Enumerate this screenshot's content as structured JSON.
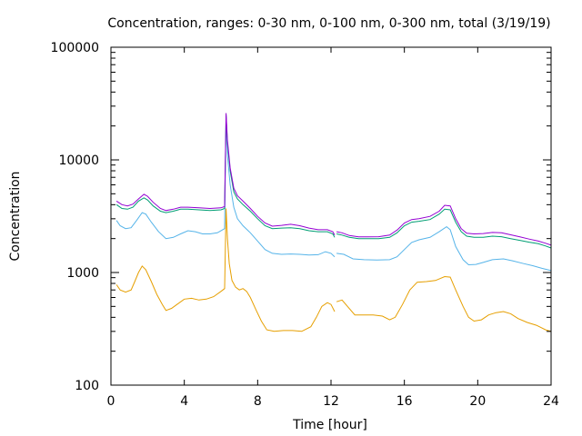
{
  "chart_data": {
    "type": "line",
    "title": "Concentration, ranges: 0-30 nm, 0-100 nm, 0-300 nm, total (3/19/19)",
    "xlabel": "Time [hour]",
    "ylabel": "Concentration",
    "xlim": [
      0,
      24
    ],
    "ylim": [
      100,
      100000
    ],
    "yscale": "log",
    "grid": false,
    "legend": "none",
    "xticks": [
      0,
      4,
      8,
      12,
      16,
      20,
      24
    ],
    "xtick_labels": [
      "0",
      "4",
      "8",
      "12",
      "16",
      "20",
      "24"
    ],
    "yticks": [
      100,
      1000,
      10000,
      100000
    ],
    "ytick_labels": [
      "100",
      "1000",
      "10000",
      "100000"
    ],
    "series": [
      {
        "color": "#e69f00",
        "segments": [
          [
            [
              0.3,
              780
            ],
            [
              0.5,
              700
            ],
            [
              0.8,
              670
            ],
            [
              1.1,
              700
            ],
            [
              1.3,
              830
            ],
            [
              1.5,
              1000
            ],
            [
              1.7,
              1140
            ],
            [
              1.9,
              1060
            ],
            [
              2.2,
              830
            ],
            [
              2.5,
              640
            ],
            [
              2.8,
              520
            ],
            [
              3.0,
              460
            ],
            [
              3.3,
              480
            ],
            [
              3.6,
              520
            ],
            [
              4.0,
              580
            ],
            [
              4.4,
              590
            ],
            [
              4.8,
              570
            ],
            [
              5.2,
              580
            ],
            [
              5.6,
              610
            ],
            [
              6.0,
              680
            ],
            [
              6.2,
              720
            ],
            [
              6.28,
              3700
            ],
            [
              6.35,
              2000
            ],
            [
              6.45,
              1200
            ],
            [
              6.6,
              850
            ],
            [
              6.8,
              740
            ],
            [
              7.0,
              700
            ],
            [
              7.2,
              720
            ],
            [
              7.4,
              680
            ],
            [
              7.6,
              600
            ],
            [
              7.9,
              470
            ],
            [
              8.2,
              370
            ],
            [
              8.5,
              310
            ],
            [
              8.9,
              300
            ],
            [
              9.4,
              305
            ],
            [
              9.9,
              305
            ],
            [
              10.4,
              300
            ],
            [
              10.9,
              330
            ],
            [
              11.2,
              400
            ],
            [
              11.5,
              500
            ],
            [
              11.8,
              540
            ],
            [
              12.0,
              520
            ],
            [
              12.2,
              450
            ]
          ],
          [
            [
              12.3,
              550
            ],
            [
              12.6,
              570
            ],
            [
              12.9,
              500
            ],
            [
              13.3,
              420
            ],
            [
              13.8,
              420
            ],
            [
              14.3,
              420
            ],
            [
              14.8,
              410
            ],
            [
              15.2,
              380
            ],
            [
              15.5,
              400
            ],
            [
              15.9,
              520
            ],
            [
              16.3,
              700
            ],
            [
              16.7,
              820
            ],
            [
              17.2,
              830
            ],
            [
              17.7,
              850
            ],
            [
              18.2,
              920
            ],
            [
              18.5,
              910
            ],
            [
              18.8,
              700
            ],
            [
              19.2,
              500
            ],
            [
              19.5,
              400
            ],
            [
              19.8,
              370
            ],
            [
              20.2,
              380
            ],
            [
              20.6,
              420
            ],
            [
              21.0,
              440
            ],
            [
              21.4,
              450
            ],
            [
              21.8,
              430
            ],
            [
              22.2,
              390
            ],
            [
              22.7,
              360
            ],
            [
              23.2,
              340
            ],
            [
              23.7,
              310
            ],
            [
              24.0,
              300
            ]
          ]
        ]
      },
      {
        "color": "#56b4e9",
        "segments": [
          [
            [
              0.3,
              2900
            ],
            [
              0.5,
              2600
            ],
            [
              0.8,
              2450
            ],
            [
              1.1,
              2500
            ],
            [
              1.4,
              2900
            ],
            [
              1.7,
              3400
            ],
            [
              1.9,
              3300
            ],
            [
              2.2,
              2800
            ],
            [
              2.6,
              2300
            ],
            [
              3.0,
              2000
            ],
            [
              3.4,
              2050
            ],
            [
              3.8,
              2200
            ],
            [
              4.2,
              2350
            ],
            [
              4.6,
              2300
            ],
            [
              5.0,
              2200
            ],
            [
              5.4,
              2200
            ],
            [
              5.8,
              2250
            ],
            [
              6.2,
              2450
            ],
            [
              6.28,
              24000
            ],
            [
              6.35,
              11000
            ],
            [
              6.5,
              6000
            ],
            [
              6.7,
              3800
            ],
            [
              6.9,
              3000
            ],
            [
              7.2,
              2600
            ],
            [
              7.6,
              2250
            ],
            [
              8.0,
              1900
            ],
            [
              8.4,
              1600
            ],
            [
              8.8,
              1480
            ],
            [
              9.3,
              1450
            ],
            [
              9.8,
              1460
            ],
            [
              10.3,
              1450
            ],
            [
              10.8,
              1430
            ],
            [
              11.3,
              1440
            ],
            [
              11.7,
              1530
            ],
            [
              12.0,
              1480
            ],
            [
              12.2,
              1380
            ]
          ],
          [
            [
              12.3,
              1480
            ],
            [
              12.7,
              1450
            ],
            [
              13.2,
              1320
            ],
            [
              13.8,
              1300
            ],
            [
              14.5,
              1290
            ],
            [
              15.2,
              1300
            ],
            [
              15.6,
              1380
            ],
            [
              16.0,
              1600
            ],
            [
              16.4,
              1850
            ],
            [
              16.8,
              1950
            ],
            [
              17.4,
              2050
            ],
            [
              17.9,
              2300
            ],
            [
              18.3,
              2550
            ],
            [
              18.5,
              2400
            ],
            [
              18.8,
              1700
            ],
            [
              19.2,
              1300
            ],
            [
              19.5,
              1170
            ],
            [
              19.9,
              1180
            ],
            [
              20.3,
              1230
            ],
            [
              20.8,
              1300
            ],
            [
              21.4,
              1320
            ],
            [
              21.9,
              1270
            ],
            [
              22.5,
              1200
            ],
            [
              23.0,
              1150
            ],
            [
              23.5,
              1090
            ],
            [
              24.0,
              1040
            ]
          ]
        ]
      },
      {
        "color": "#009e73",
        "segments": [
          [
            [
              0.3,
              4000
            ],
            [
              0.6,
              3700
            ],
            [
              0.9,
              3650
            ],
            [
              1.2,
              3800
            ],
            [
              1.5,
              4300
            ],
            [
              1.8,
              4600
            ],
            [
              2.0,
              4400
            ],
            [
              2.3,
              3900
            ],
            [
              2.7,
              3500
            ],
            [
              3.0,
              3400
            ],
            [
              3.4,
              3500
            ],
            [
              3.8,
              3650
            ],
            [
              4.2,
              3650
            ],
            [
              4.8,
              3600
            ],
            [
              5.4,
              3550
            ],
            [
              6.0,
              3600
            ],
            [
              6.2,
              3700
            ],
            [
              6.28,
              25000
            ],
            [
              6.35,
              14000
            ],
            [
              6.5,
              8000
            ],
            [
              6.7,
              5200
            ],
            [
              6.9,
              4500
            ],
            [
              7.2,
              4000
            ],
            [
              7.6,
              3500
            ],
            [
              8.0,
              3000
            ],
            [
              8.4,
              2600
            ],
            [
              8.8,
              2450
            ],
            [
              9.3,
              2480
            ],
            [
              9.8,
              2500
            ],
            [
              10.3,
              2450
            ],
            [
              10.8,
              2350
            ],
            [
              11.3,
              2300
            ],
            [
              11.8,
              2300
            ],
            [
              12.1,
              2200
            ],
            [
              12.2,
              2050
            ]
          ],
          [
            [
              12.3,
              2200
            ],
            [
              12.6,
              2150
            ],
            [
              13.0,
              2050
            ],
            [
              13.5,
              2000
            ],
            [
              14.0,
              2000
            ],
            [
              14.6,
              2000
            ],
            [
              15.2,
              2050
            ],
            [
              15.6,
              2250
            ],
            [
              16.0,
              2600
            ],
            [
              16.4,
              2800
            ],
            [
              16.8,
              2850
            ],
            [
              17.4,
              2950
            ],
            [
              17.9,
              3300
            ],
            [
              18.2,
              3650
            ],
            [
              18.5,
              3600
            ],
            [
              18.8,
              2800
            ],
            [
              19.1,
              2300
            ],
            [
              19.4,
              2100
            ],
            [
              19.8,
              2050
            ],
            [
              20.3,
              2050
            ],
            [
              20.8,
              2100
            ],
            [
              21.3,
              2080
            ],
            [
              21.8,
              2000
            ],
            [
              22.3,
              1930
            ],
            [
              22.8,
              1860
            ],
            [
              23.3,
              1800
            ],
            [
              23.7,
              1720
            ],
            [
              24.0,
              1650
            ]
          ]
        ]
      },
      {
        "color": "#9400d3",
        "segments": [
          [
            [
              0.3,
              4300
            ],
            [
              0.6,
              4000
            ],
            [
              0.9,
              3900
            ],
            [
              1.2,
              4050
            ],
            [
              1.5,
              4500
            ],
            [
              1.8,
              4950
            ],
            [
              2.0,
              4750
            ],
            [
              2.3,
              4200
            ],
            [
              2.7,
              3700
            ],
            [
              3.0,
              3550
            ],
            [
              3.4,
              3650
            ],
            [
              3.8,
              3800
            ],
            [
              4.2,
              3800
            ],
            [
              4.8,
              3750
            ],
            [
              5.4,
              3700
            ],
            [
              6.0,
              3750
            ],
            [
              6.2,
              3850
            ],
            [
              6.28,
              26000
            ],
            [
              6.35,
              15000
            ],
            [
              6.5,
              8500
            ],
            [
              6.7,
              5600
            ],
            [
              6.9,
              4800
            ],
            [
              7.2,
              4300
            ],
            [
              7.6,
              3700
            ],
            [
              8.0,
              3150
            ],
            [
              8.4,
              2750
            ],
            [
              8.8,
              2580
            ],
            [
              9.3,
              2620
            ],
            [
              9.8,
              2680
            ],
            [
              10.3,
              2600
            ],
            [
              10.8,
              2480
            ],
            [
              11.3,
              2400
            ],
            [
              11.8,
              2400
            ],
            [
              12.1,
              2300
            ],
            [
              12.2,
              2150
            ]
          ],
          [
            [
              12.3,
              2300
            ],
            [
              12.6,
              2250
            ],
            [
              13.0,
              2130
            ],
            [
              13.5,
              2070
            ],
            [
              14.0,
              2070
            ],
            [
              14.6,
              2080
            ],
            [
              15.2,
              2150
            ],
            [
              15.6,
              2380
            ],
            [
              16.0,
              2750
            ],
            [
              16.4,
              2950
            ],
            [
              16.8,
              3000
            ],
            [
              17.4,
              3150
            ],
            [
              17.9,
              3500
            ],
            [
              18.2,
              3950
            ],
            [
              18.5,
              3900
            ],
            [
              18.8,
              3000
            ],
            [
              19.1,
              2450
            ],
            [
              19.4,
              2230
            ],
            [
              19.8,
              2200
            ],
            [
              20.3,
              2220
            ],
            [
              20.8,
              2270
            ],
            [
              21.3,
              2250
            ],
            [
              21.8,
              2160
            ],
            [
              22.3,
              2070
            ],
            [
              22.8,
              1980
            ],
            [
              23.3,
              1900
            ],
            [
              23.7,
              1820
            ],
            [
              24.0,
              1750
            ]
          ]
        ]
      }
    ]
  }
}
